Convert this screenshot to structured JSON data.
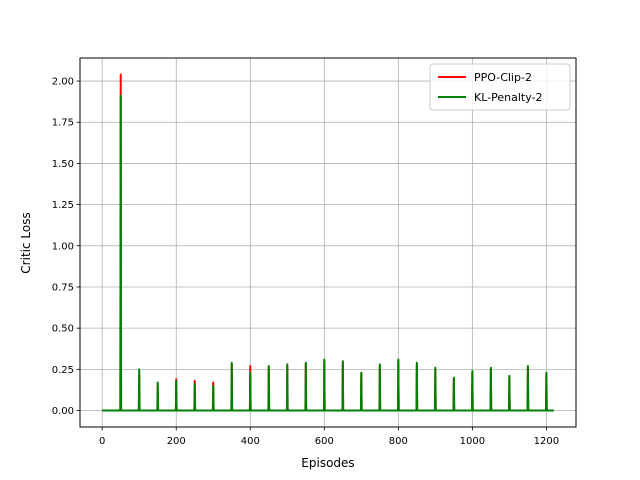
{
  "chart_data": {
    "type": "line",
    "title": "",
    "xlabel": "Episodes",
    "ylabel": "Critic Loss",
    "xlim": [
      -60,
      1280
    ],
    "ylim": [
      -0.1,
      2.14
    ],
    "xticks": [
      0,
      200,
      400,
      600,
      800,
      1000,
      1200
    ],
    "xtick_labels": [
      "0",
      "200",
      "400",
      "600",
      "800",
      "1000",
      "1200"
    ],
    "yticks": [
      0.0,
      0.25,
      0.5,
      0.75,
      1.0,
      1.25,
      1.5,
      1.75,
      2.0
    ],
    "ytick_labels": [
      "0.00",
      "0.25",
      "0.50",
      "0.75",
      "1.00",
      "1.25",
      "1.50",
      "1.75",
      "2.00"
    ],
    "grid": true,
    "legend_position": "top-right",
    "x_range": [
      0,
      1220
    ],
    "spike_episodes": [
      50,
      100,
      150,
      200,
      250,
      300,
      350,
      400,
      450,
      500,
      550,
      600,
      650,
      700,
      750,
      800,
      850,
      900,
      950,
      1000,
      1050,
      1100,
      1150,
      1200
    ],
    "series": [
      {
        "name": "PPO-Clip-2",
        "color": "#ff0000",
        "spike_values": [
          2.04,
          0.22,
          0.15,
          0.19,
          0.18,
          0.17,
          0.28,
          0.27,
          0.26,
          0.27,
          0.28,
          0.3,
          0.29,
          0.22,
          0.27,
          0.3,
          0.28,
          0.25,
          0.19,
          0.23,
          0.25,
          0.2,
          0.26,
          0.22
        ]
      },
      {
        "name": "KL-Penalty-2",
        "color": "#008000",
        "spike_values": [
          1.91,
          0.25,
          0.17,
          0.18,
          0.16,
          0.15,
          0.29,
          0.23,
          0.27,
          0.28,
          0.29,
          0.31,
          0.3,
          0.23,
          0.28,
          0.31,
          0.29,
          0.26,
          0.2,
          0.24,
          0.26,
          0.21,
          0.27,
          0.23
        ]
      }
    ]
  }
}
